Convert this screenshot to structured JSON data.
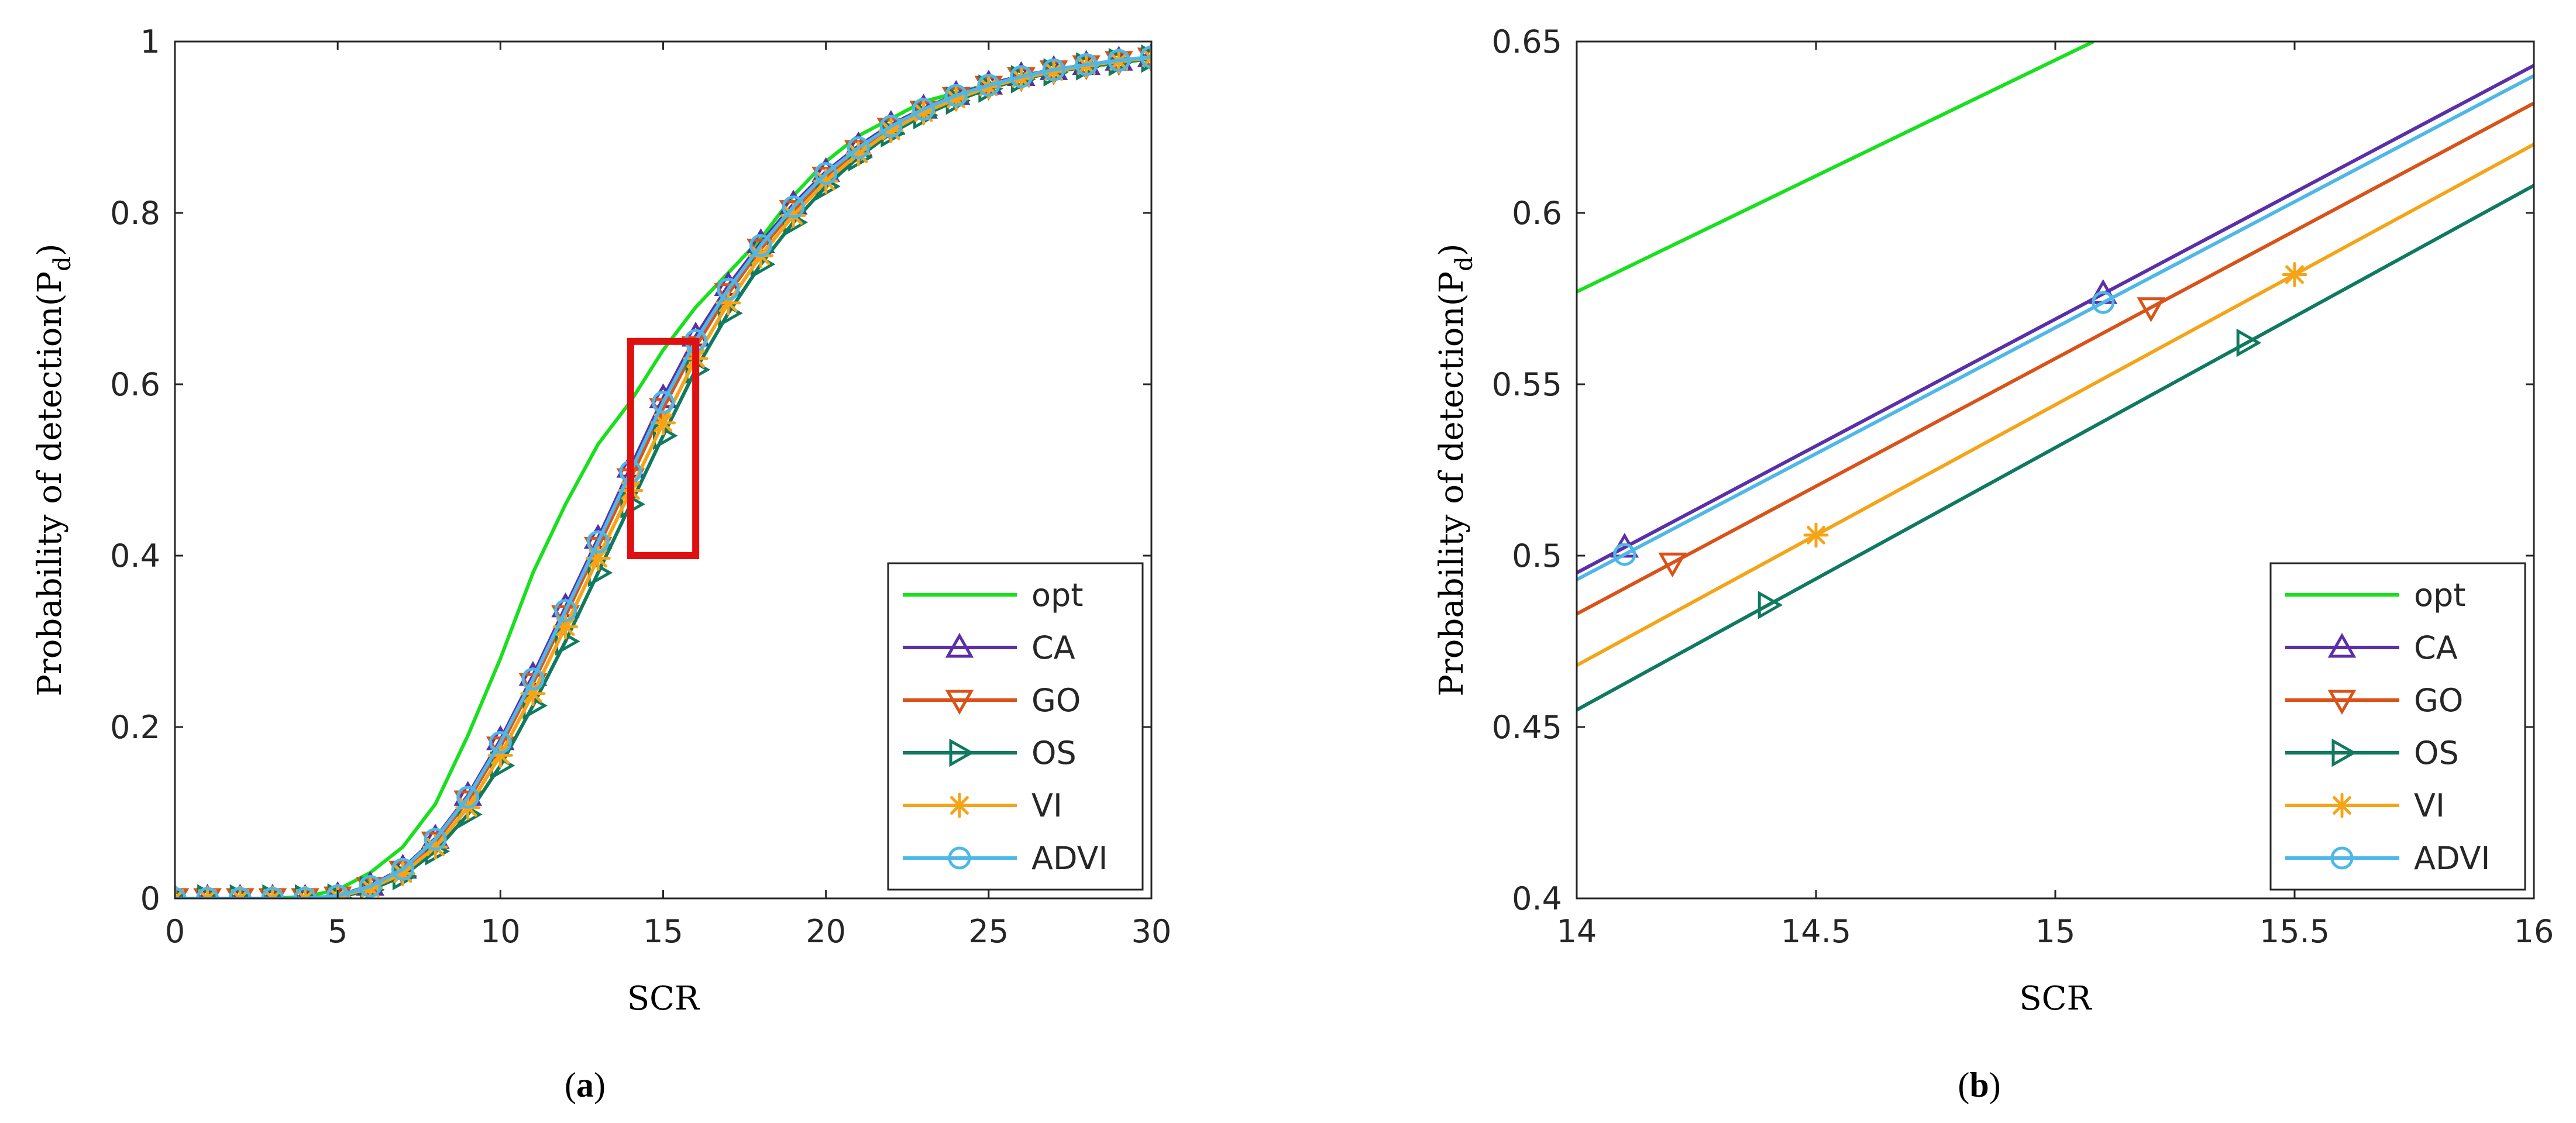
{
  "chart_data": [
    {
      "type": "line",
      "panel_label": "a",
      "xlabel": "SCR",
      "ylabel_main": "Probability of detection(P",
      "ylabel_sub": "d",
      "ylabel_close": ")",
      "xlim": [
        0,
        30
      ],
      "ylim": [
        0,
        1
      ],
      "xticks": [
        0,
        5,
        10,
        15,
        20,
        25,
        30
      ],
      "yticks": [
        0,
        0.2,
        0.4,
        0.6,
        0.8,
        1
      ],
      "xtick_labels": [
        "0",
        "5",
        "10",
        "15",
        "20",
        "25",
        "30"
      ],
      "ytick_labels": [
        "0",
        "0.2",
        "0.4",
        "0.6",
        "0.8",
        "1"
      ],
      "legend_position": "bottom-right",
      "zoom_box": {
        "x": [
          14,
          16
        ],
        "y": [
          0.4,
          0.65
        ]
      },
      "series": [
        {
          "name": "opt",
          "marker": "none",
          "x": [
            0,
            1,
            2,
            3,
            4,
            5,
            6,
            7,
            8,
            9,
            10,
            11,
            12,
            13,
            14,
            15,
            16,
            17,
            18,
            19,
            20,
            21,
            22,
            23,
            24,
            25,
            26,
            27,
            28,
            29,
            30
          ],
          "values": [
            0,
            0,
            0,
            0,
            0.002,
            0.01,
            0.03,
            0.06,
            0.11,
            0.19,
            0.28,
            0.38,
            0.46,
            0.53,
            0.58,
            0.64,
            0.69,
            0.73,
            0.77,
            0.82,
            0.86,
            0.89,
            0.91,
            0.93,
            0.94,
            0.95,
            0.96,
            0.965,
            0.97,
            0.975,
            0.98
          ]
        },
        {
          "name": "CA",
          "marker": "triangle-up",
          "x": [
            0,
            1,
            2,
            3,
            4,
            5,
            6,
            7,
            8,
            9,
            10,
            11,
            12,
            13,
            14,
            15,
            16,
            17,
            18,
            19,
            20,
            21,
            22,
            23,
            24,
            25,
            26,
            27,
            28,
            29,
            30
          ],
          "values": [
            0,
            0,
            0,
            0,
            0,
            0.003,
            0.015,
            0.035,
            0.07,
            0.12,
            0.185,
            0.26,
            0.34,
            0.42,
            0.503,
            0.584,
            0.656,
            0.715,
            0.765,
            0.81,
            0.848,
            0.878,
            0.903,
            0.922,
            0.938,
            0.95,
            0.96,
            0.967,
            0.973,
            0.978,
            0.982
          ]
        },
        {
          "name": "GO",
          "marker": "triangle-down",
          "x": [
            0,
            1,
            2,
            3,
            4,
            5,
            6,
            7,
            8,
            9,
            10,
            11,
            12,
            13,
            14,
            15,
            16,
            17,
            18,
            19,
            20,
            21,
            22,
            23,
            24,
            25,
            26,
            27,
            28,
            29,
            30
          ],
          "values": [
            0,
            0,
            0,
            0,
            0,
            0.002,
            0.013,
            0.032,
            0.066,
            0.114,
            0.177,
            0.251,
            0.33,
            0.41,
            0.49,
            0.572,
            0.644,
            0.706,
            0.758,
            0.803,
            0.842,
            0.873,
            0.899,
            0.919,
            0.935,
            0.948,
            0.958,
            0.966,
            0.972,
            0.977,
            0.981
          ]
        },
        {
          "name": "OS",
          "marker": "triangle-right",
          "x": [
            0,
            1,
            2,
            3,
            4,
            5,
            6,
            7,
            8,
            9,
            10,
            11,
            12,
            13,
            14,
            15,
            16,
            17,
            18,
            19,
            20,
            21,
            22,
            23,
            24,
            25,
            26,
            27,
            28,
            29,
            30
          ],
          "values": [
            0,
            0,
            0,
            0,
            0,
            0.001,
            0.01,
            0.026,
            0.055,
            0.098,
            0.155,
            0.225,
            0.3,
            0.38,
            0.46,
            0.54,
            0.617,
            0.683,
            0.74,
            0.789,
            0.831,
            0.865,
            0.893,
            0.914,
            0.931,
            0.945,
            0.956,
            0.964,
            0.971,
            0.976,
            0.98
          ]
        },
        {
          "name": "VI",
          "marker": "asterisk",
          "x": [
            0,
            1,
            2,
            3,
            4,
            5,
            6,
            7,
            8,
            9,
            10,
            11,
            12,
            13,
            14,
            15,
            16,
            17,
            18,
            19,
            20,
            21,
            22,
            23,
            24,
            25,
            26,
            27,
            28,
            29,
            30
          ],
          "values": [
            0,
            0,
            0,
            0,
            0,
            0.002,
            0.012,
            0.029,
            0.06,
            0.106,
            0.167,
            0.239,
            0.317,
            0.397,
            0.476,
            0.555,
            0.63,
            0.695,
            0.75,
            0.797,
            0.837,
            0.869,
            0.896,
            0.917,
            0.933,
            0.947,
            0.957,
            0.965,
            0.972,
            0.977,
            0.981
          ]
        },
        {
          "name": "ADVI",
          "marker": "circle",
          "x": [
            0,
            1,
            2,
            3,
            4,
            5,
            6,
            7,
            8,
            9,
            10,
            11,
            12,
            13,
            14,
            15,
            16,
            17,
            18,
            19,
            20,
            21,
            22,
            23,
            24,
            25,
            26,
            27,
            28,
            29,
            30
          ],
          "values": [
            0,
            0,
            0,
            0,
            0,
            0.003,
            0.014,
            0.034,
            0.069,
            0.118,
            0.182,
            0.256,
            0.336,
            0.416,
            0.498,
            0.579,
            0.651,
            0.711,
            0.762,
            0.807,
            0.846,
            0.876,
            0.901,
            0.921,
            0.937,
            0.949,
            0.959,
            0.967,
            0.973,
            0.978,
            0.982
          ]
        }
      ]
    },
    {
      "type": "line",
      "panel_label": "b",
      "xlabel": "SCR",
      "ylabel_main": "Probability of detection(P",
      "ylabel_sub": "d",
      "ylabel_close": ")",
      "xlim": [
        14,
        16
      ],
      "ylim": [
        0.4,
        0.65
      ],
      "xticks": [
        14,
        14.5,
        15,
        15.5,
        16
      ],
      "yticks": [
        0.4,
        0.45,
        0.5,
        0.55,
        0.6,
        0.65
      ],
      "xtick_labels": [
        "14",
        "14.5",
        "15",
        "15.5",
        "16"
      ],
      "ytick_labels": [
        "0.4",
        "0.45",
        "0.5",
        "0.55",
        "0.6",
        "0.65"
      ],
      "legend_position": "bottom-right",
      "series": [
        {
          "name": "opt",
          "marker": "none",
          "x": [
            14,
            15.08
          ],
          "values": [
            0.577,
            0.65
          ],
          "marker_x": []
        },
        {
          "name": "CA",
          "marker": "triangle-up",
          "x": [
            14,
            16
          ],
          "values": [
            0.495,
            0.643
          ],
          "marker_x": [
            14.1,
            15.1
          ]
        },
        {
          "name": "GO",
          "marker": "triangle-down",
          "x": [
            14,
            16
          ],
          "values": [
            0.483,
            0.632
          ],
          "marker_x": [
            14.2,
            15.2
          ]
        },
        {
          "name": "OS",
          "marker": "triangle-right",
          "x": [
            14,
            16
          ],
          "values": [
            0.455,
            0.608
          ],
          "marker_x": [
            14.4,
            15.4
          ]
        },
        {
          "name": "VI",
          "marker": "asterisk",
          "x": [
            14,
            16
          ],
          "values": [
            0.468,
            0.62
          ],
          "marker_x": [
            14.5,
            15.5
          ]
        },
        {
          "name": "ADVI",
          "marker": "circle",
          "x": [
            14,
            16
          ],
          "values": [
            0.493,
            0.64
          ],
          "marker_x": [
            14.1,
            15.1
          ]
        }
      ]
    }
  ],
  "colors": {
    "opt": "#17e01c",
    "CA": "#5a2fa8",
    "GO": "#d95319",
    "OS": "#0f7a5f",
    "VI": "#f5a418",
    "ADVI": "#4db8e8",
    "zoom_box": "#e01010"
  }
}
